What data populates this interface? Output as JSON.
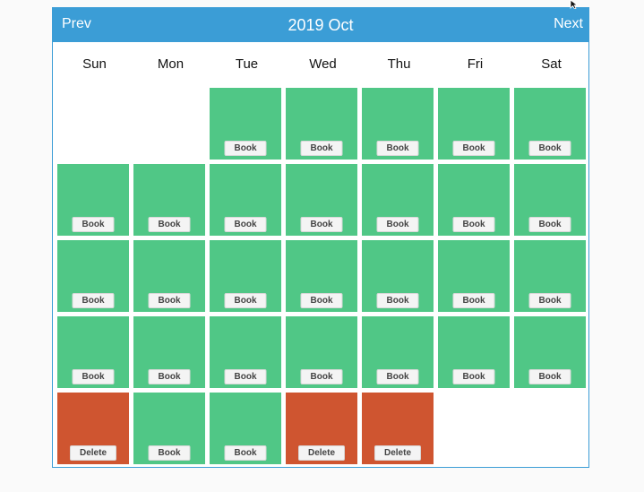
{
  "header": {
    "prev_label": "Prev",
    "title": "2019 Oct",
    "next_label": "Next"
  },
  "weekdays": [
    "Sun",
    "Mon",
    "Tue",
    "Wed",
    "Thu",
    "Fri",
    "Sat"
  ],
  "first_weekday_index": 2,
  "days": [
    {
      "state": "available",
      "action": "Book"
    },
    {
      "state": "available",
      "action": "Book"
    },
    {
      "state": "available",
      "action": "Book"
    },
    {
      "state": "available",
      "action": "Book"
    },
    {
      "state": "available",
      "action": "Book"
    },
    {
      "state": "available",
      "action": "Book"
    },
    {
      "state": "available",
      "action": "Book"
    },
    {
      "state": "available",
      "action": "Book"
    },
    {
      "state": "available",
      "action": "Book"
    },
    {
      "state": "available",
      "action": "Book"
    },
    {
      "state": "available",
      "action": "Book"
    },
    {
      "state": "available",
      "action": "Book"
    },
    {
      "state": "available",
      "action": "Book"
    },
    {
      "state": "available",
      "action": "Book"
    },
    {
      "state": "available",
      "action": "Book"
    },
    {
      "state": "available",
      "action": "Book"
    },
    {
      "state": "available",
      "action": "Book"
    },
    {
      "state": "available",
      "action": "Book"
    },
    {
      "state": "available",
      "action": "Book"
    },
    {
      "state": "available",
      "action": "Book"
    },
    {
      "state": "available",
      "action": "Book"
    },
    {
      "state": "available",
      "action": "Book"
    },
    {
      "state": "available",
      "action": "Book"
    },
    {
      "state": "available",
      "action": "Book"
    },
    {
      "state": "available",
      "action": "Book"
    },
    {
      "state": "available",
      "action": "Book"
    },
    {
      "state": "booked",
      "action": "Delete"
    },
    {
      "state": "available",
      "action": "Book"
    },
    {
      "state": "available",
      "action": "Book"
    },
    {
      "state": "booked",
      "action": "Delete"
    },
    {
      "state": "booked",
      "action": "Delete"
    }
  ],
  "colors": {
    "header": "#3b9dd6",
    "available": "#50c786",
    "booked": "#cf5530"
  }
}
